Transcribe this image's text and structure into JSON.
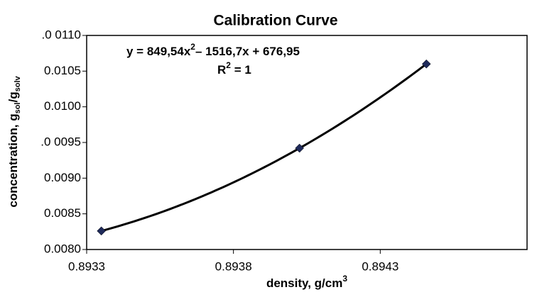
{
  "chart_data": {
    "type": "scatter",
    "title": "Calibration Curve",
    "equation": [
      "y = 849,54x",
      "2",
      "– 1516,7x + 676,95"
    ],
    "r_squared": [
      "R",
      "2",
      " = 1"
    ],
    "x_label": [
      "density, g/cm",
      "3"
    ],
    "y_label": [
      "concentration, g",
      "sol",
      "/g",
      "solv"
    ],
    "series": [
      {
        "color": "#1f2a5a",
        "trendline": true,
        "x": [
          0.89335,
          0.894025,
          0.894457
        ],
        "values": [
          0.00826,
          0.00942,
          0.0106
        ]
      }
    ],
    "xlim": [
      0.8933,
      0.8948
    ],
    "xticks": [
      0.8933,
      0.8938,
      0.8943
    ],
    "ylim": [
      0.008,
      0.011
    ],
    "yticks": [
      {
        "value": 0.008,
        "label": "0.0080"
      },
      0.0085,
      {
        "value": 0.009,
        "label": "0.0090"
      },
      {
        "value": 0.0095,
        "label": ".0 0095"
      },
      {
        "value": 0.01,
        "label": "0.0100"
      },
      0.0105,
      {
        "value": 0.011,
        "label": ".0 0110"
      }
    ]
  }
}
